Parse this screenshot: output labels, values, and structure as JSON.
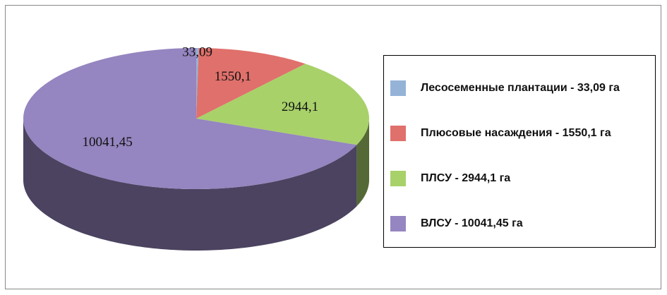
{
  "chart_data": {
    "type": "pie",
    "categories": [
      "Лесосеменные плантации - 33,09 га",
      "Плюсовые насаждения - 1550,1 га",
      "ПЛСУ - 2944,1 га",
      "ВЛСУ - 10041,45 га"
    ],
    "values": [
      33.09,
      1550.1,
      2944.1,
      10041.45
    ],
    "value_labels": [
      "33,09",
      "1550,1",
      "2944,1",
      "10041,45"
    ],
    "colors": [
      "#95b3d7",
      "#e0706b",
      "#a8d16a",
      "#9585c0"
    ],
    "legend": "right"
  }
}
